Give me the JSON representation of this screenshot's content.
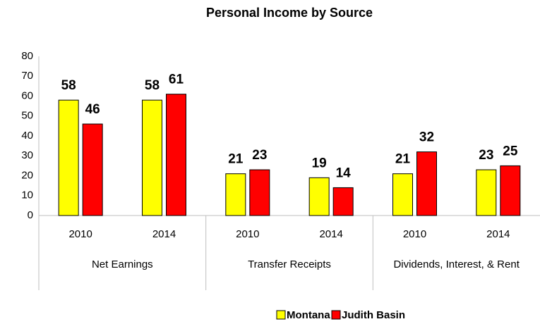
{
  "chart_data": {
    "type": "bar",
    "title": "Personal Income by Source",
    "categories": [
      "2010",
      "2014",
      "2010",
      "2014",
      "2010",
      "2014"
    ],
    "category_groups": [
      {
        "label": "Net Earnings",
        "span": 2
      },
      {
        "label": "Transfer Receipts",
        "span": 2
      },
      {
        "label": "Dividends, Interest, & Rent",
        "span": 2
      }
    ],
    "series": [
      {
        "name": "Montana",
        "color": "#ffff00",
        "values": [
          58,
          58,
          21,
          19,
          21,
          23
        ]
      },
      {
        "name": "Judith Basin",
        "color": "#ff0000",
        "values": [
          46,
          61,
          23,
          14,
          32,
          25
        ]
      }
    ],
    "ylim": [
      0,
      80
    ],
    "yticks": [
      0,
      10,
      20,
      30,
      40,
      50,
      60,
      70,
      80
    ],
    "grid": false,
    "legend": "bottom"
  }
}
